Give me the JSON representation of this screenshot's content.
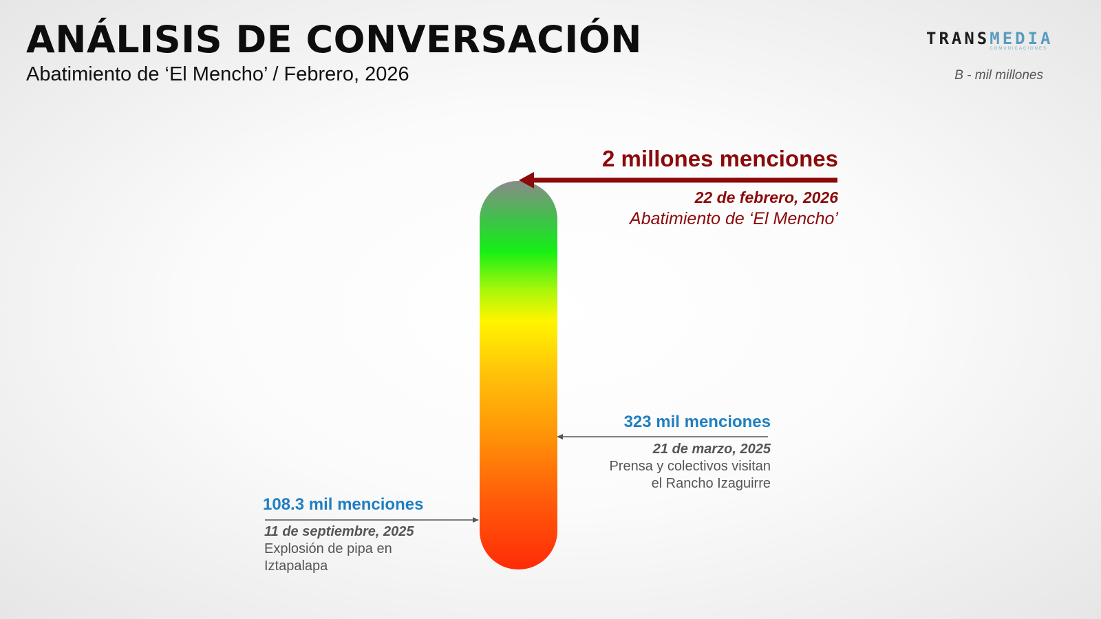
{
  "header": {
    "title": "ANÁLISIS DE CONVERSACIÓN",
    "subtitle": "Abatimiento de ‘El Mencho’ / Febrero, 2026",
    "unit_note": "B - mil millones"
  },
  "logo": {
    "part1": "TRANS",
    "part2": "MEDIA",
    "tagline": "COMUNICACIONES"
  },
  "colors": {
    "peak": "#8b0a0a",
    "value_blue": "#1f7fc1",
    "muted": "#555555"
  },
  "chart_data": {
    "type": "bar",
    "title": "ANÁLISIS DE CONVERSACIÓN",
    "gradient_stops": [
      "#8a8a8a",
      "#3fc24a",
      "#15ef15",
      "#a8f70b",
      "#fff500",
      "#ffc10a",
      "#ff9808",
      "#ff5c0a",
      "#ff2b07"
    ],
    "annotations": [
      {
        "id": "top",
        "label": "2 millones menciones",
        "mentions": 2000000,
        "date": "22 de febrero, 2026",
        "description": [
          "Abatimiento de ‘El Mencho’"
        ]
      },
      {
        "id": "mid",
        "label": "323 mil menciones",
        "mentions": 323000,
        "date": "21 de marzo, 2025",
        "description": [
          "Prensa y colectivos visitan",
          "el Rancho Izaguirre"
        ]
      },
      {
        "id": "low",
        "label": "108.3 mil menciones",
        "mentions": 108300,
        "date": "11 de septiembre, 2025",
        "description": [
          "Explosión de pipa en",
          "Iztapalapa"
        ]
      }
    ]
  }
}
